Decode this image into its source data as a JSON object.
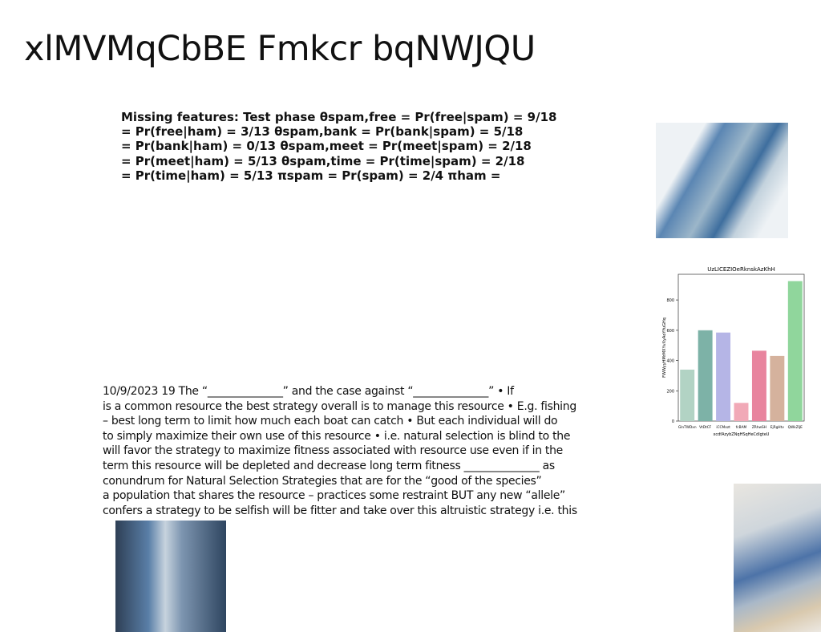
{
  "title": "xlMVMqCbBE Fmkcr bqNWJQU",
  "formula_lines": [
    "Missing features: Test phase θspam,free = Pr(free|spam) = 9/18",
    "= Pr(free|ham) = 3/13 θspam,bank = Pr(bank|spam) = 5/18",
    "= Pr(bank|ham) = 0/13 θspam,meet = Pr(meet|spam) = 2/18",
    "= Pr(meet|ham) = 5/13 θspam,time = Pr(time|spam) = 2/18",
    "= Pr(time|ham) = 5/13 πspam = Pr(spam) = 2/4 πham ="
  ],
  "body_lines": [
    "10/9/2023 19 The “______________” and the case against “______________” • If",
    "is a common resource the best strategy overall is to manage this resource • E.g. fishing",
    "– best long term to limit how much each boat can catch • But each individual will do",
    "to simply maximize their own use of this resource • i.e. natural selection is blind to the",
    "will favor the strategy to maximize fitness associated with resource use even if in the",
    "term this resource will be depleted and decrease long term fitness ______________ as",
    "conundrum for Natural Selection Strategies that are for the “good of the species”",
    "a population that shares the resource – practices some restraint BUT any new “allele”",
    "confers a strategy to be selfish will be fitter and take over this altruistic strategy i.e. this"
  ],
  "chart_data": {
    "type": "bar",
    "title": "UzLICEZIOeRknskAzKhH",
    "categories": [
      "GlnTWDxn",
      "VtDtCF",
      "iCCMozt",
      "fcBAM",
      "ZRhwSH",
      "EjRgHtv",
      "QWkZIjE"
    ],
    "values": [
      340,
      600,
      585,
      120,
      465,
      430,
      925
    ],
    "colors": [
      "#b2d3c4",
      "#7db2a7",
      "#b5b5e6",
      "#f1a9b7",
      "#e8849e",
      "#d5b29d",
      "#90d69c"
    ],
    "xlabel": "xcdfAzybZNqHSqHeCdlgteU",
    "ylabel": "FWWyyHMrMXYvXyAoYYuGHq",
    "ylim": [
      0,
      970
    ],
    "yticks": [
      0,
      200,
      400,
      600,
      800
    ]
  }
}
